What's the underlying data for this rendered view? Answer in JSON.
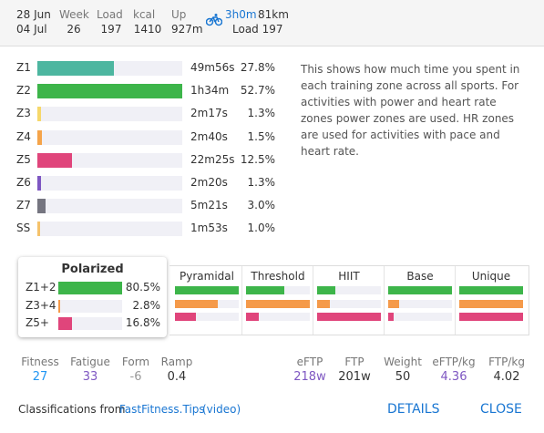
{
  "header": {
    "date_from": "28 Jun",
    "date_to": "04 Jul",
    "stats": [
      {
        "label": "Week",
        "value": 26
      },
      {
        "label": "Load",
        "value": 197
      },
      {
        "label": "kcal",
        "value": 1410
      },
      {
        "label": "Up",
        "value": "927m"
      }
    ],
    "ride": {
      "duration": "3h0m",
      "distance": "81km",
      "load": "Load 197"
    }
  },
  "zones": [
    {
      "name": "Z1",
      "time": "49m56s",
      "percent": 27.8,
      "percent_label": "27.8%",
      "color": "#4db6a0"
    },
    {
      "name": "Z2",
      "time": "1h34m",
      "percent": 52.7,
      "percent_label": "52.7%",
      "color": "#3db54a"
    },
    {
      "name": "Z3",
      "time": "2m17s",
      "percent": 1.3,
      "percent_label": "1.3%",
      "color": "#f6d86a"
    },
    {
      "name": "Z4",
      "time": "2m40s",
      "percent": 1.5,
      "percent_label": "1.5%",
      "color": "#f5a44a"
    },
    {
      "name": "Z5",
      "time": "22m25s",
      "percent": 12.5,
      "percent_label": "12.5%",
      "color": "#e0457b"
    },
    {
      "name": "Z6",
      "time": "2m20s",
      "percent": 1.3,
      "percent_label": "1.3%",
      "color": "#7e57c2"
    },
    {
      "name": "Z7",
      "time": "5m21s",
      "percent": 3.0,
      "percent_label": "3.0%",
      "color": "#757580"
    },
    {
      "name": "SS",
      "time": "1m53s",
      "percent": 1.0,
      "percent_label": "1.0%",
      "color": "#f5c26b"
    }
  ],
  "description": "This shows how much time you spent in each training zone across all sports. For activities with power and heart rate zones power zones are used. HR zones are used for activities with pace and heart rate.",
  "polarized": {
    "title": "Polarized",
    "rows": [
      {
        "name": "Z1+2",
        "value": 80.5,
        "label": "80.5%"
      },
      {
        "name": "Z3+4",
        "value": 2.8,
        "label": "2.8%"
      },
      {
        "name": "Z5+",
        "value": 16.8,
        "label": "16.8%"
      }
    ]
  },
  "group_colors": [
    "#3db54a",
    "#f59a4a",
    "#e0457b"
  ],
  "classifications": [
    {
      "name": "Pyramidal",
      "values": [
        100,
        67,
        33
      ]
    },
    {
      "name": "Threshold",
      "values": [
        60,
        100,
        20
      ]
    },
    {
      "name": "HIIT",
      "values": [
        29,
        20,
        100
      ]
    },
    {
      "name": "Base",
      "values": [
        100,
        17,
        9
      ]
    },
    {
      "name": "Unique",
      "values": [
        100,
        100,
        100
      ]
    }
  ],
  "fitness": [
    {
      "label": "Fitness",
      "value": 27,
      "color": "#2196f3"
    },
    {
      "label": "Fatigue",
      "value": 33,
      "color": "#7e57c2"
    },
    {
      "label": "Form",
      "value": -6,
      "color": "#999999"
    },
    {
      "label": "Ramp",
      "value": 0.4,
      "color": "#333333"
    }
  ],
  "power": [
    {
      "label": "eFTP",
      "value": "218w",
      "color": "#7e57c2"
    },
    {
      "label": "FTP",
      "value": "201w",
      "color": "#333333"
    },
    {
      "label": "Weight",
      "value": 50,
      "color": "#333333"
    },
    {
      "label": "eFTP/kg",
      "value": 4.36,
      "color": "#7e57c2"
    },
    {
      "label": "FTP/kg",
      "value": 4.02,
      "color": "#333333"
    }
  ],
  "footer": {
    "prefix": "Classifications from",
    "link": "FastFitness.Tips",
    "video": "(video)",
    "details": "DETAILS",
    "close": "CLOSE"
  }
}
